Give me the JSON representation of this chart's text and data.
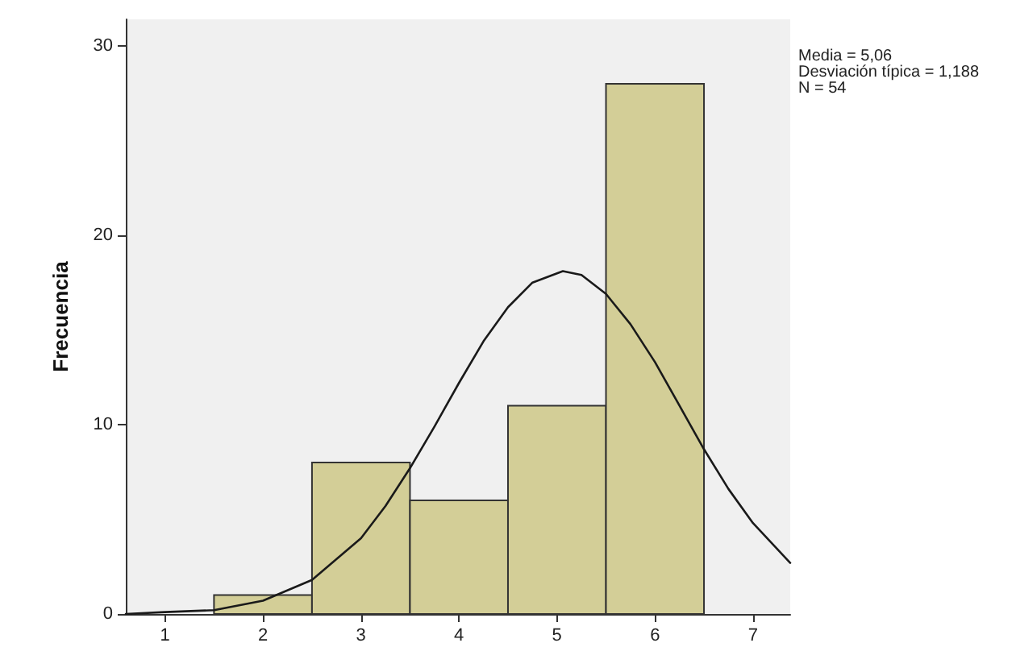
{
  "chart_data": {
    "type": "histogram",
    "ylabel": "Frecuencia",
    "annotations": [
      "Media = 5,06",
      "Desviación típica = 1,188",
      "N = 54"
    ],
    "bins": [
      1.5,
      2.5,
      3.5,
      4.5,
      5.5,
      6.5
    ],
    "series": [
      {
        "color": "#d3ce97",
        "values": [
          1,
          8,
          6,
          11,
          28
        ]
      },
      {
        "type": "line",
        "color": "#1a1a1a",
        "marker": "none",
        "line_style": "solid",
        "x": [
          0.6,
          1,
          1.5,
          2,
          2.5,
          3,
          3.25,
          3.5,
          3.75,
          4,
          4.25,
          4.5,
          4.75,
          5.06,
          5.25,
          5.5,
          5.75,
          6,
          6.25,
          6.5,
          6.75,
          7,
          7.38
        ],
        "values": [
          0,
          0.1,
          0.2,
          0.7,
          1.8,
          4.0,
          5.7,
          7.7,
          9.9,
          12.2,
          14.4,
          16.2,
          17.5,
          18.1,
          17.9,
          16.9,
          15.3,
          13.3,
          11.0,
          8.7,
          6.6,
          4.8,
          2.7
        ]
      }
    ],
    "xlim": [
      0.6,
      7.38
    ],
    "xticks": [
      1,
      2,
      3,
      4,
      5,
      6,
      7
    ],
    "ylim": [
      0,
      31.4
    ],
    "yticks": [
      0,
      10,
      20,
      30
    ],
    "grid": false
  }
}
